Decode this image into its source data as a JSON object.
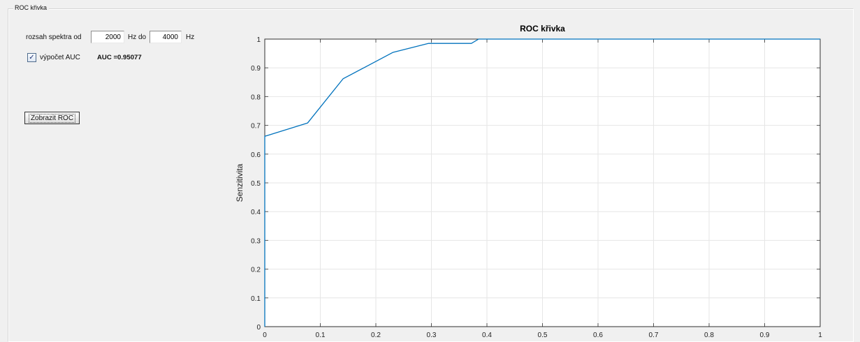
{
  "panel": {
    "title": "ROC křivka"
  },
  "controls": {
    "range_label": "rozsah spektra od",
    "from_value": "2000",
    "middle_label": "Hz do",
    "to_value": "4000",
    "unit_label": "Hz",
    "auc_checkbox_label": "výpočet AUC",
    "auc_checked": true,
    "auc_text": "AUC =0.95077",
    "show_button_label": "Zobrazit ROC"
  },
  "icons": {
    "checkbox": "check-icon"
  },
  "colors": {
    "window_bg": "#f0f0f0",
    "plot_bg": "#ffffff",
    "grid": "#e6e6e6",
    "curve": "#0072bd",
    "axis": "#555555"
  },
  "chart_data": {
    "type": "line",
    "title": "ROC křivka",
    "xlabel": "",
    "ylabel": "Senzitivita",
    "xlim": [
      0,
      1
    ],
    "ylim": [
      0,
      1
    ],
    "grid": true,
    "x_ticks": [
      0,
      0.1,
      0.2,
      0.3,
      0.4,
      0.5,
      0.6,
      0.7,
      0.8,
      0.9,
      1
    ],
    "y_ticks": [
      0,
      0.1,
      0.2,
      0.3,
      0.4,
      0.5,
      0.6,
      0.7,
      0.8,
      0.9,
      1
    ],
    "x_tick_labels": [
      "0",
      "0.1",
      "0.2",
      "0.3",
      "0.4",
      "0.5",
      "0.6",
      "0.7",
      "0.8",
      "0.9",
      "1"
    ],
    "y_tick_labels": [
      "0",
      "0.1",
      "0.2",
      "0.3",
      "0.4",
      "0.5",
      "0.6",
      "0.7",
      "0.8",
      "0.9",
      "1"
    ],
    "series": [
      {
        "color": "#0072bd",
        "x": [
          0,
          0,
          0.077,
          0.141,
          0.186,
          0.231,
          0.295,
          0.372,
          0.385,
          1
        ],
        "y": [
          0,
          0.662,
          0.708,
          0.862,
          0.908,
          0.954,
          0.985,
          0.985,
          1,
          1
        ]
      }
    ]
  }
}
